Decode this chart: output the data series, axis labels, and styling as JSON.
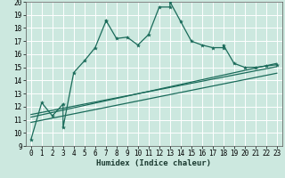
{
  "bg_color": "#cce8df",
  "grid_color": "#ffffff",
  "line_color": "#1a6b5a",
  "xlabel": "Humidex (Indice chaleur)",
  "xlabel_fontsize": 6.5,
  "tick_fontsize": 5.5,
  "ylim": [
    9,
    20
  ],
  "xlim": [
    -0.5,
    23.5
  ],
  "yticks": [
    9,
    10,
    11,
    12,
    13,
    14,
    15,
    16,
    17,
    18,
    19,
    20
  ],
  "xticks": [
    0,
    1,
    2,
    3,
    4,
    5,
    6,
    7,
    8,
    9,
    10,
    11,
    12,
    13,
    14,
    15,
    16,
    17,
    18,
    19,
    20,
    21,
    22,
    23
  ],
  "line1_x": [
    0,
    1,
    2,
    3,
    3,
    4,
    5,
    6,
    7,
    7,
    8,
    9,
    10,
    11,
    12,
    13,
    13,
    14,
    15,
    16,
    17,
    18,
    18,
    19,
    20,
    21,
    22,
    23
  ],
  "line1_y": [
    9.5,
    12.3,
    11.3,
    12.2,
    10.4,
    14.6,
    15.5,
    16.5,
    18.5,
    18.6,
    17.2,
    17.3,
    16.7,
    17.5,
    19.6,
    19.6,
    20.0,
    18.5,
    17.0,
    16.7,
    16.5,
    16.5,
    16.7,
    15.3,
    15.0,
    15.0,
    15.1,
    15.2
  ],
  "line2_x": [
    0,
    23
  ],
  "line2_y": [
    11.2,
    15.3
  ],
  "line3_x": [
    0,
    23
  ],
  "line3_y": [
    11.4,
    15.05
  ],
  "line4_x": [
    0,
    23
  ],
  "line4_y": [
    10.8,
    14.55
  ]
}
